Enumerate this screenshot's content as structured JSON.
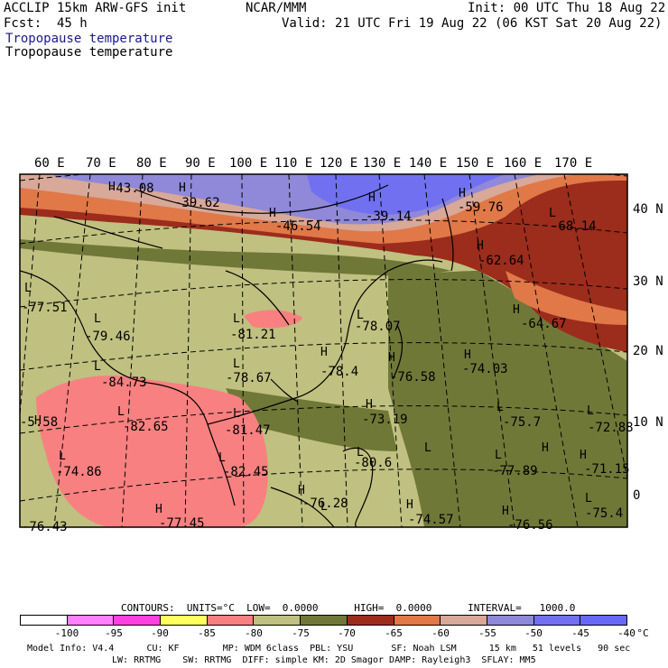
{
  "header": {
    "model": "ACCLIP 15km ARW-GFS init",
    "forecast": "Fcst:  45 h",
    "source": "NCAR/MMM",
    "init": "Init: 00 UTC Thu 18 Aug 22",
    "valid": "Valid: 21 UTC Fri 19 Aug 22 (06 KST Sat 20 Aug 22)",
    "field_title_1": "Tropopause temperature",
    "field_title_2": "Tropopause temperature"
  },
  "map": {
    "lon_labels": [
      "60 E",
      "70 E",
      "80 E",
      "90 E",
      "100 E",
      "110 E",
      "120 E",
      "130 E",
      "140 E",
      "150 E",
      "160 E",
      "170 E"
    ],
    "lat_labels": [
      "40 N",
      "30 N",
      "20 N",
      "10 N",
      "0"
    ],
    "highs": [
      "H",
      "H",
      "H",
      "H",
      "H",
      "H",
      "H",
      "H",
      "H",
      "H",
      "H",
      "H",
      "H",
      "H",
      "H",
      "H",
      "H",
      "H"
    ],
    "lows": [
      "L",
      "L",
      "L",
      "L",
      "L",
      "L",
      "L",
      "L",
      "L",
      "L",
      "L",
      "L",
      "L",
      "L",
      "L",
      "L",
      "L",
      "L"
    ],
    "values": [
      "-43.08",
      "-39.62",
      "-46.54",
      "-39.14",
      "-59.76",
      "-68.14",
      "-62.64",
      "-77.51",
      "-79.46",
      "-81.21",
      "-78.07",
      "-64.67",
      "-84.73",
      "-78.67",
      "-78.4",
      "-76.58",
      "-74.03",
      "-5.58",
      "-82.65",
      "-81.47",
      "-73.19",
      "-75.7",
      "-72.88",
      "-74.86",
      "-82.45",
      "-80.6",
      "-77.89",
      "-71.15",
      "-76.28",
      "-74.57",
      "-75.4",
      "-76.43",
      "-77.45",
      "-76.56"
    ]
  },
  "legend": {
    "contours_text": "CONTOURS:  UNITS=°C  LOW=  0.0000      HIGH=  0.0000      INTERVAL=   1000.0",
    "ticks": [
      "-100",
      "-95",
      "-90",
      "-85",
      "-80",
      "-75",
      "-70",
      "-65",
      "-60",
      "-55",
      "-50",
      "-45",
      "-40",
      "°C"
    ],
    "colors": [
      "#ffffff",
      "#ff80ff",
      "#ff40e0",
      "#ffff60",
      "#f88080",
      "#c0c080",
      "#707838",
      "#9c2c1c",
      "#e07848",
      "#d8a898",
      "#9088d8",
      "#7070f0",
      "#6868f8"
    ]
  },
  "footer": {
    "line1": "Model Info: V4.4      CU: KF        MP: WDM 6class  PBL: YSU       SF: Noah LSM      15 km   51 levels   90 sec",
    "line2": "LW: RRTMG    SW: RRTMG  DIFF: simple KM: 2D Smagor DAMP: Rayleigh3  SFLAY: MM5"
  }
}
